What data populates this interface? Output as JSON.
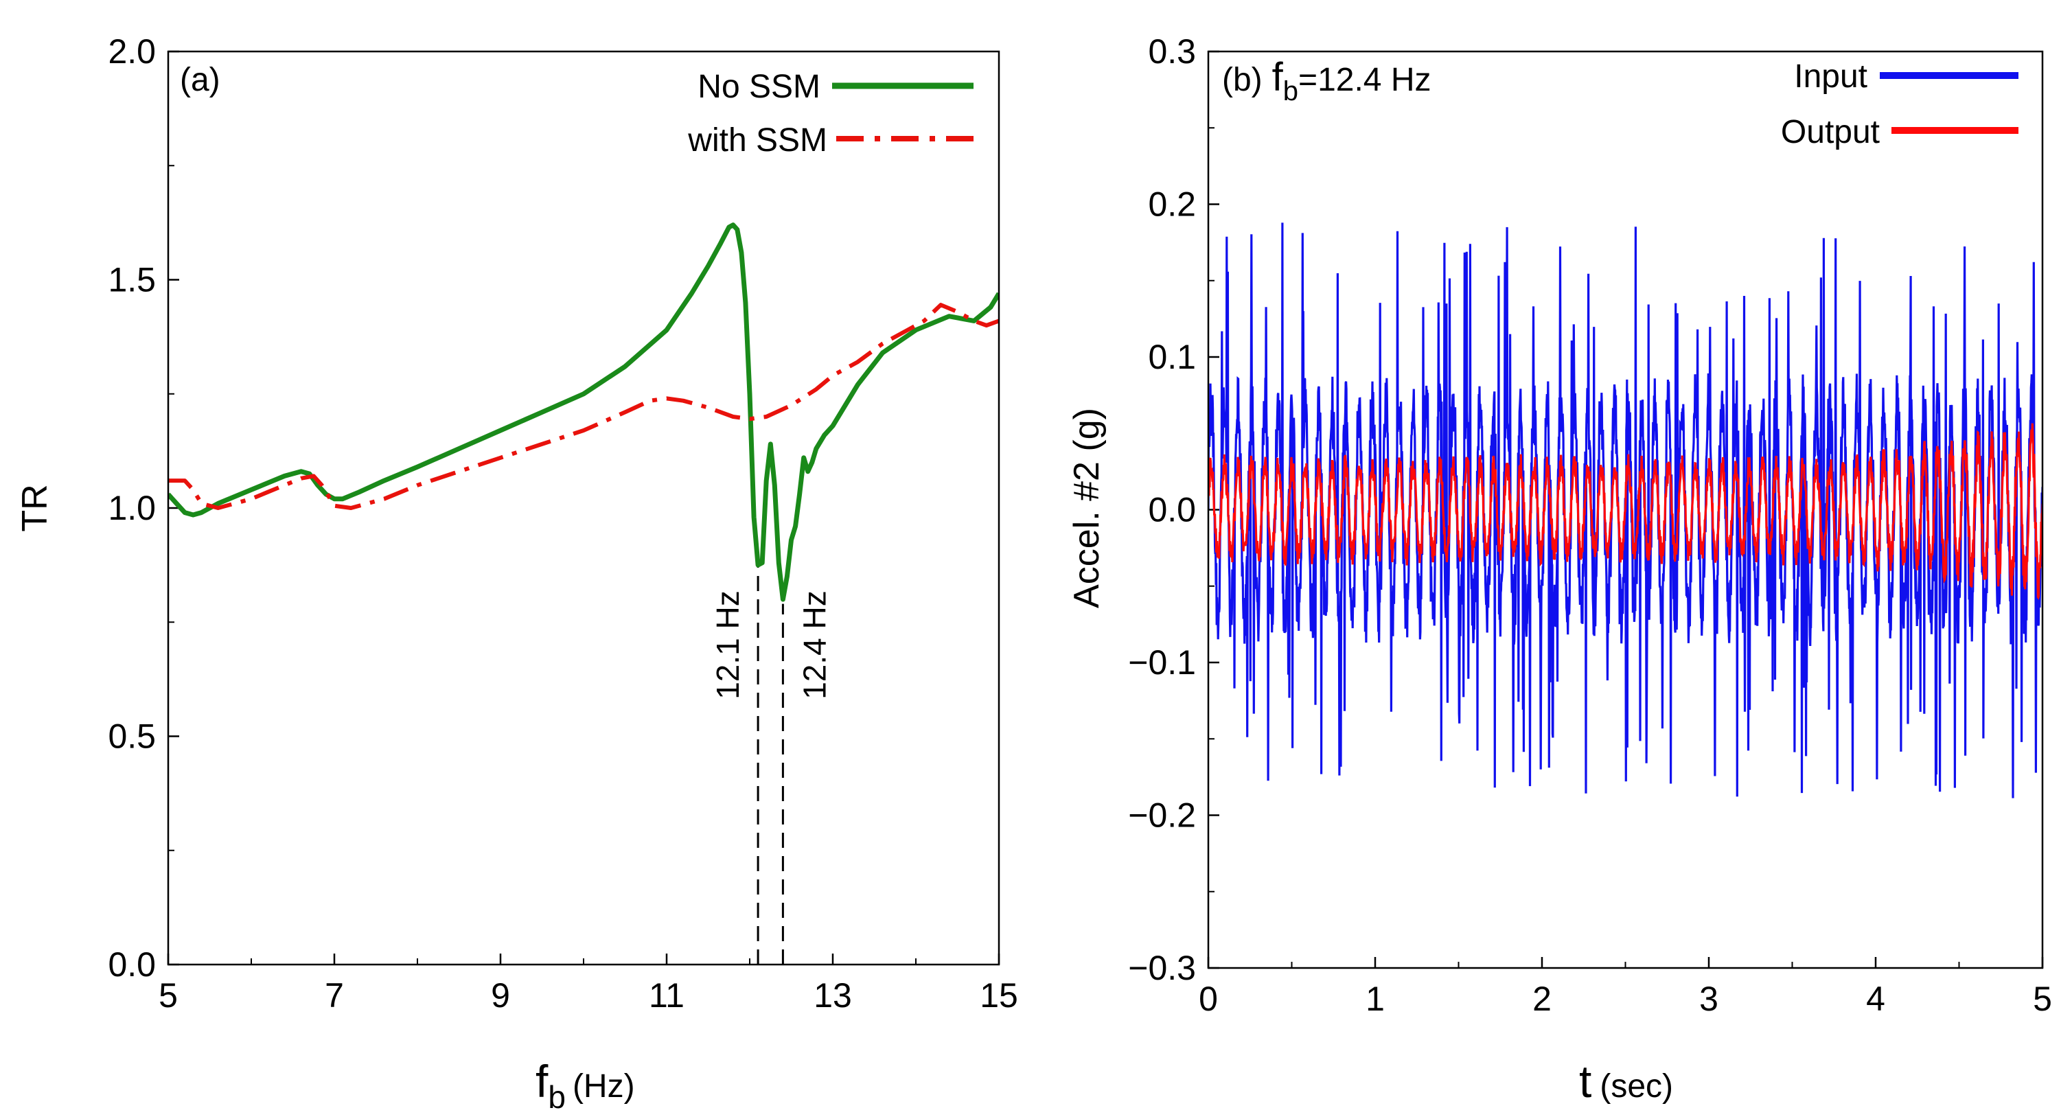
{
  "chart_data": [
    {
      "type": "line",
      "panel_label": "(a)",
      "ylabel": "TR",
      "xlabel": {
        "main": "f",
        "sub": "b",
        "unit": "(Hz)"
      },
      "xlim": [
        5,
        15
      ],
      "ylim": [
        0,
        2
      ],
      "xticks": [
        5,
        7,
        9,
        11,
        13,
        15
      ],
      "xticks_minor": [
        6,
        8,
        10,
        12,
        14
      ],
      "yticks": [
        0.0,
        0.5,
        1.0,
        1.5,
        2.0
      ],
      "ytick_labels": [
        "0.0",
        "0.5",
        "1.0",
        "1.5",
        "2.0"
      ],
      "legend_position": "top-right",
      "series": [
        {
          "name": "No SSM",
          "color": "#1a8a1a",
          "style": "solid",
          "x": [
            5.0,
            5.1,
            5.2,
            5.3,
            5.4,
            5.6,
            5.8,
            6.0,
            6.2,
            6.4,
            6.6,
            6.7,
            6.8,
            6.9,
            7.0,
            7.1,
            7.3,
            7.6,
            8.0,
            8.5,
            9.0,
            9.5,
            10.0,
            10.5,
            11.0,
            11.3,
            11.5,
            11.65,
            11.75,
            11.8,
            11.85,
            11.9,
            11.95,
            12.0,
            12.05,
            12.1,
            12.15,
            12.2,
            12.25,
            12.3,
            12.35,
            12.4,
            12.45,
            12.5,
            12.55,
            12.6,
            12.65,
            12.7,
            12.75,
            12.8,
            12.9,
            13.0,
            13.3,
            13.6,
            14.0,
            14.4,
            14.7,
            14.9,
            15.0
          ],
          "y": [
            1.03,
            1.01,
            0.99,
            0.985,
            0.99,
            1.01,
            1.025,
            1.04,
            1.055,
            1.07,
            1.08,
            1.075,
            1.05,
            1.03,
            1.02,
            1.02,
            1.035,
            1.06,
            1.09,
            1.13,
            1.17,
            1.21,
            1.25,
            1.31,
            1.39,
            1.47,
            1.53,
            1.58,
            1.615,
            1.62,
            1.61,
            1.56,
            1.45,
            1.25,
            0.98,
            0.875,
            0.88,
            1.06,
            1.14,
            1.05,
            0.88,
            0.8,
            0.85,
            0.93,
            0.96,
            1.03,
            1.11,
            1.08,
            1.1,
            1.13,
            1.16,
            1.18,
            1.27,
            1.34,
            1.39,
            1.42,
            1.41,
            1.44,
            1.47
          ]
        },
        {
          "name": "with SSM",
          "color": "#e8120c",
          "style": "dashdot",
          "x": [
            5.0,
            5.2,
            5.3,
            5.4,
            5.6,
            5.8,
            6.0,
            6.2,
            6.4,
            6.6,
            6.75,
            6.85,
            6.95,
            7.0,
            7.2,
            7.6,
            8.0,
            8.5,
            9.0,
            9.5,
            10.0,
            10.5,
            10.8,
            11.0,
            11.2,
            11.5,
            11.8,
            12.0,
            12.2,
            12.5,
            12.8,
            13.0,
            13.3,
            13.6,
            13.9,
            14.1,
            14.3,
            14.5,
            14.7,
            14.85,
            15.0
          ],
          "y": [
            1.06,
            1.06,
            1.04,
            1.01,
            1.0,
            1.01,
            1.02,
            1.035,
            1.05,
            1.065,
            1.07,
            1.05,
            1.02,
            1.005,
            1.0,
            1.02,
            1.05,
            1.08,
            1.11,
            1.14,
            1.17,
            1.21,
            1.235,
            1.24,
            1.235,
            1.22,
            1.2,
            1.195,
            1.2,
            1.225,
            1.26,
            1.29,
            1.32,
            1.36,
            1.39,
            1.41,
            1.445,
            1.43,
            1.41,
            1.4,
            1.41
          ]
        }
      ],
      "annotations": [
        {
          "text": "12.1 Hz",
          "x": 12.1,
          "y_from": 0.0,
          "y_to": 0.87,
          "style": "dashed"
        },
        {
          "text": "12.4 Hz",
          "x": 12.4,
          "y_from": 0.0,
          "y_to": 0.79,
          "style": "dashed"
        }
      ]
    },
    {
      "type": "line",
      "panel_label": "(b)",
      "panel_title": {
        "main": "f",
        "sub": "b",
        "rest": "=12.4 Hz"
      },
      "ylabel": "Accel. #2 (g)",
      "xlabel": {
        "main": "t",
        "unit": "(sec)"
      },
      "xlim": [
        0,
        5
      ],
      "ylim": [
        -0.3,
        0.3
      ],
      "xticks": [
        0,
        1,
        2,
        3,
        4,
        5
      ],
      "xticks_minor": [
        0.5,
        1.5,
        2.5,
        3.5,
        4.5
      ],
      "yticks": [
        -0.3,
        -0.2,
        -0.1,
        0.0,
        0.1,
        0.2,
        0.3
      ],
      "ytick_labels": [
        "−0.3",
        "−0.2",
        "−0.1",
        "0.0",
        "0.1",
        "0.2",
        "0.3"
      ],
      "legend_position": "top-right",
      "series": [
        {
          "name": "Input",
          "color": "#1010ee",
          "typical_amplitude": 0.09,
          "max": 0.205,
          "min": -0.19,
          "notes": "random broadband excitation, duration 5 sec"
        },
        {
          "name": "Output",
          "color": "#ff0a0a",
          "typical_amplitude": 0.035,
          "max": 0.07,
          "min": -0.075,
          "notes": "response grows after ~3.8 sec"
        }
      ]
    }
  ]
}
